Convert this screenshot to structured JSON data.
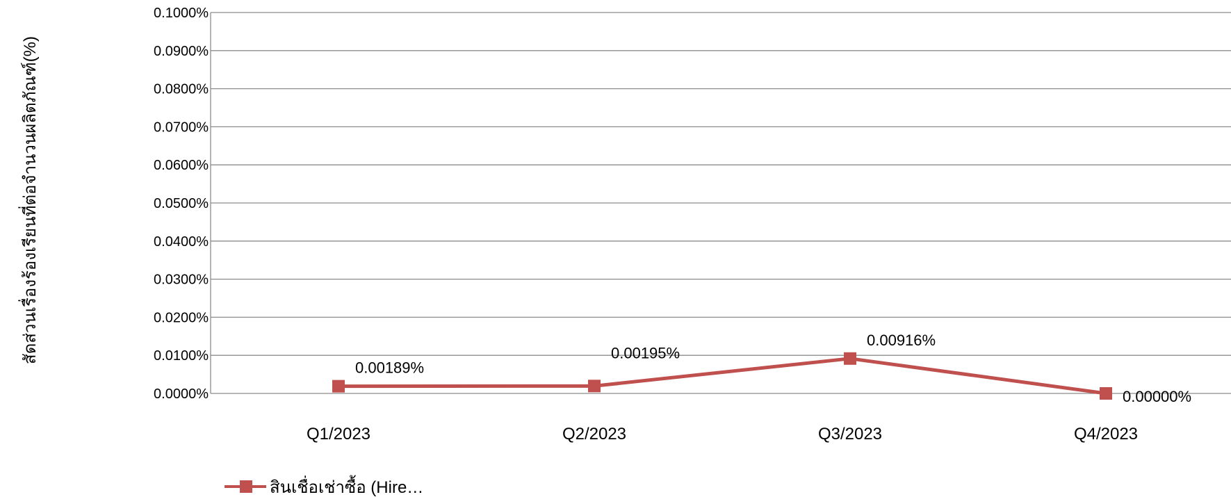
{
  "chart_data": {
    "type": "line",
    "title": "",
    "xlabel": "",
    "ylabel": "สัดส่วนเรื่องร้องเรียนที่ต่อจำนวนผลิตภัณฑ์(%)",
    "categories": [
      "Q1/2023",
      "Q2/2023",
      "Q3/2023",
      "Q4/2023"
    ],
    "series": [
      {
        "name": "สินเชื่อเช่าซื้อ (Hire…",
        "values": [
          0.00189,
          0.00195,
          0.00916,
          0.0
        ],
        "labels": [
          "0.00189%",
          "0.00195%",
          "0.00916%",
          "0.00000%"
        ],
        "color": "#C0504D"
      }
    ],
    "ylim": [
      0,
      0.1
    ],
    "yticks": [
      "0.0000%",
      "0.0100%",
      "0.0200%",
      "0.0300%",
      "0.0400%",
      "0.0500%",
      "0.0600%",
      "0.0700%",
      "0.0800%",
      "0.0900%",
      "0.1000%"
    ],
    "grid": true,
    "legend": "bottom-left"
  }
}
